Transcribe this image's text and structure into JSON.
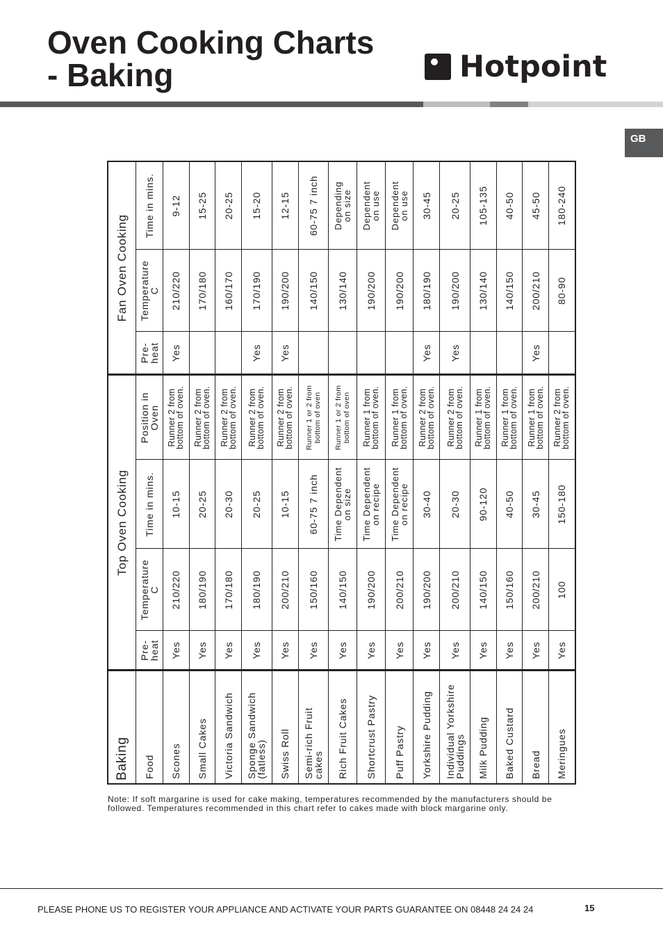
{
  "page": {
    "title": "Oven Cooking Charts\n- Baking",
    "brand": "Hotpoint",
    "region_tab": "GB",
    "colors": {
      "bar_dark": "#58595b",
      "bar_light": "#bcbec0",
      "bar_mid": "#808285",
      "bar_lighter": "#d1d3d4",
      "tab": "#58595b"
    }
  },
  "table": {
    "group_headers": {
      "baking": "Baking",
      "top": "Top Oven Cooking",
      "fan": "Fan Oven Cooking"
    },
    "headers": [
      "Food",
      "Pre-\nheat",
      "Temperature\nC",
      "Time in mins.",
      "Position in\nOven",
      "Pre-\nheat",
      "Temperature\nC",
      "Time in mins."
    ],
    "rows": [
      [
        "Scones",
        "Yes",
        "210/220",
        "10-15",
        "Runner 2 from\nbottom of oven.",
        "Yes",
        "210/220",
        "9-12"
      ],
      [
        "Small Cakes",
        "Yes",
        "180/190",
        "20-25",
        "Runner 2 from\nbottom of oven.",
        "",
        "170/180",
        "15-25"
      ],
      [
        "Victoria Sandwich",
        "Yes",
        "170/180",
        "20-30",
        "Runner 2 from\nbottom of oven.",
        "",
        "160/170",
        "20-25"
      ],
      [
        "Sponge Sandwich\n(fatless)",
        "Yes",
        "180/190",
        "20-25",
        "Runner 2 from\nbottom of oven.",
        "Yes",
        "170/190",
        "15-20"
      ],
      [
        "Swiss Roll",
        "Yes",
        "200/210",
        "10-15",
        "Runner 2 from\nbottom of oven.",
        "Yes",
        "190/200",
        "12-15"
      ],
      [
        "Semi-rich Fruit\ncakes",
        "Yes",
        "150/160",
        "60-75   7 inch",
        "Runner 1 or 2 from\nbottom of oven",
        "",
        "140/150",
        "60-75   7 inch"
      ],
      [
        "Rich Fruit Cakes",
        "Yes",
        "140/150",
        "Time Dependent\non size",
        "Runner 1 or 2 from\nbottom of oven",
        "",
        "130/140",
        "Depending\non size"
      ],
      [
        "Shortcrust Pastry",
        "Yes",
        "190/200",
        "Time Dependent\non recipe",
        "Runner 1 from\nbottom of oven.",
        "",
        "190/200",
        "Dependent\non use"
      ],
      [
        "Puff Pastry",
        "Yes",
        "200/210",
        "Time Dependent\non recipe",
        "Runner 1 from\nbottom of oven.",
        "",
        "190/200",
        "Dependent\non use"
      ],
      [
        "Yorkshire Pudding",
        "Yes",
        "190/200",
        "30-40",
        "Runner 2 from\nbottom of oven.",
        "Yes",
        "180/190",
        "30-45"
      ],
      [
        "Individual Yorkshire\nPuddings",
        "Yes",
        "200/210",
        "20-30",
        "Runner 2 from\nbottom of oven.",
        "Yes",
        "190/200",
        "20-25"
      ],
      [
        "Milk Pudding",
        "Yes",
        "140/150",
        "90-120",
        "Runner 1 from\nbottom of oven.",
        "",
        "130/140",
        "105-135"
      ],
      [
        "Baked Custard",
        "Yes",
        "150/160",
        "40-50",
        "Runner 1 from\nbottom of oven.",
        "",
        "140/150",
        "40-50"
      ],
      [
        "Bread",
        "Yes",
        "200/210",
        "30-45",
        "Runner 1 from\nbottom of oven.",
        "Yes",
        "200/210",
        "45-50"
      ],
      [
        "Meringues",
        "Yes",
        "100",
        "150-180",
        "Runner 2 from\nbottom of oven.",
        "",
        "80-90",
        "180-240"
      ]
    ]
  },
  "note": "Note: If soft margarine is used for cake making, temperatures recommended by the manufacturers should be followed. Temperatures recommended in this chart refer to cakes made with block margarine only.",
  "footer": {
    "text": "PLEASE PHONE US TO REGISTER YOUR APPLIANCE  AND ACTIVATE YOUR PARTS GUARANTEE ON 08448 24 24 24",
    "page_number": "15"
  }
}
